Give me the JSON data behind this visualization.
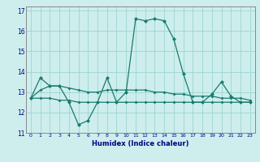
{
  "xlabel": "Humidex (Indice chaleur)",
  "x": [
    0,
    1,
    2,
    3,
    4,
    5,
    6,
    7,
    8,
    9,
    10,
    11,
    12,
    13,
    14,
    15,
    16,
    17,
    18,
    19,
    20,
    21,
    22,
    23
  ],
  "line1": [
    12.7,
    13.7,
    13.3,
    13.3,
    12.5,
    11.4,
    11.6,
    12.5,
    13.7,
    12.5,
    13.0,
    16.6,
    16.5,
    16.6,
    16.5,
    15.6,
    13.9,
    12.5,
    12.5,
    12.9,
    13.5,
    12.8,
    12.5,
    12.5
  ],
  "line2": [
    12.7,
    13.1,
    13.3,
    13.3,
    13.2,
    13.1,
    13.0,
    13.0,
    13.1,
    13.1,
    13.1,
    13.1,
    13.1,
    13.0,
    13.0,
    12.9,
    12.9,
    12.8,
    12.8,
    12.8,
    12.7,
    12.7,
    12.7,
    12.6
  ],
  "line3": [
    12.7,
    12.7,
    12.7,
    12.6,
    12.6,
    12.5,
    12.5,
    12.5,
    12.5,
    12.5,
    12.5,
    12.5,
    12.5,
    12.5,
    12.5,
    12.5,
    12.5,
    12.5,
    12.5,
    12.5,
    12.5,
    12.5,
    12.5,
    12.5
  ],
  "line_color": "#1a7a6e",
  "bg_color": "#cdeeed",
  "grid_color": "#9dd4d0",
  "ylim": [
    11.0,
    17.2
  ],
  "yticks": [
    11,
    12,
    13,
    14,
    15,
    16,
    17
  ],
  "xlim": [
    -0.5,
    23.5
  ],
  "xtick_labels": [
    "0",
    "1",
    "2",
    "3",
    "4",
    "5",
    "6",
    "7",
    "8",
    "9",
    "1011",
    "1213",
    "1415",
    "1617",
    "1819",
    "2021",
    "2223"
  ]
}
